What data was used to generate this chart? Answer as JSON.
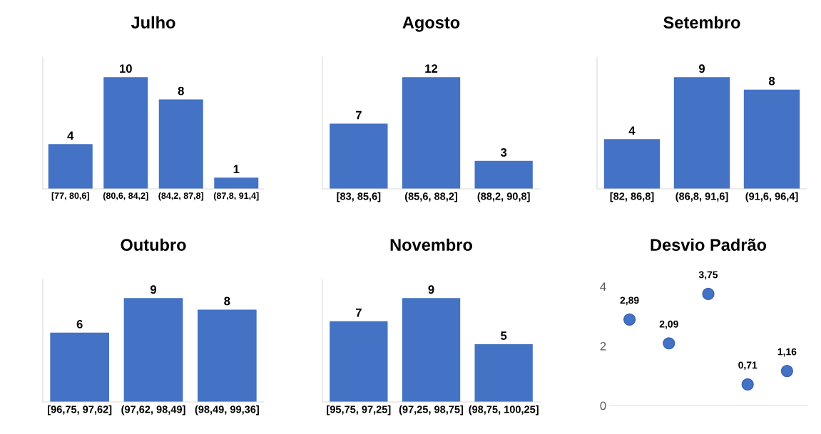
{
  "chart_data": [
    {
      "type": "bar",
      "title": "Julho",
      "categories": [
        "[77, 80,6]",
        "(80,6, 84,2]",
        "(84,2, 87,8]",
        "(87,8, 91,4]"
      ],
      "values": [
        4,
        10,
        8,
        1
      ],
      "color": "#4472c4",
      "data_labels": true
    },
    {
      "type": "bar",
      "title": "Agosto",
      "categories": [
        "[83, 85,6]",
        "(85,6, 88,2]",
        "(88,2, 90,8]"
      ],
      "values": [
        7,
        12,
        3
      ],
      "color": "#4472c4",
      "data_labels": true
    },
    {
      "type": "bar",
      "title": "Setembro",
      "categories": [
        "[82, 86,8]",
        "(86,8, 91,6]",
        "(91,6, 96,4]"
      ],
      "values": [
        4,
        9,
        8
      ],
      "color": "#4472c4",
      "data_labels": true
    },
    {
      "type": "bar",
      "title": "Outubro",
      "categories": [
        "[96,75, 97,62]",
        "(97,62, 98,49]",
        "(98,49, 99,36]"
      ],
      "values": [
        6,
        9,
        8
      ],
      "color": "#4472c4",
      "data_labels": true
    },
    {
      "type": "bar",
      "title": "Novembro",
      "categories": [
        "[95,75, 97,25]",
        "(97,25, 98,75]",
        "(98,75, 100,25]"
      ],
      "values": [
        7,
        9,
        5
      ],
      "color": "#4472c4",
      "data_labels": true
    },
    {
      "type": "scatter",
      "title": "Desvio Padrão",
      "categories": [
        null,
        null,
        null,
        null,
        null
      ],
      "values": [
        2.89,
        2.09,
        3.75,
        0.71,
        1.16
      ],
      "color": "#4472c4",
      "marker": "circle",
      "data_labels": true,
      "value_labels": [
        "2,89",
        "2,09",
        "3,75",
        "0,71",
        "1,16"
      ],
      "ylim": [
        0,
        4
      ],
      "yticks": [
        0,
        2,
        4
      ],
      "tick_labels": "y"
    }
  ]
}
